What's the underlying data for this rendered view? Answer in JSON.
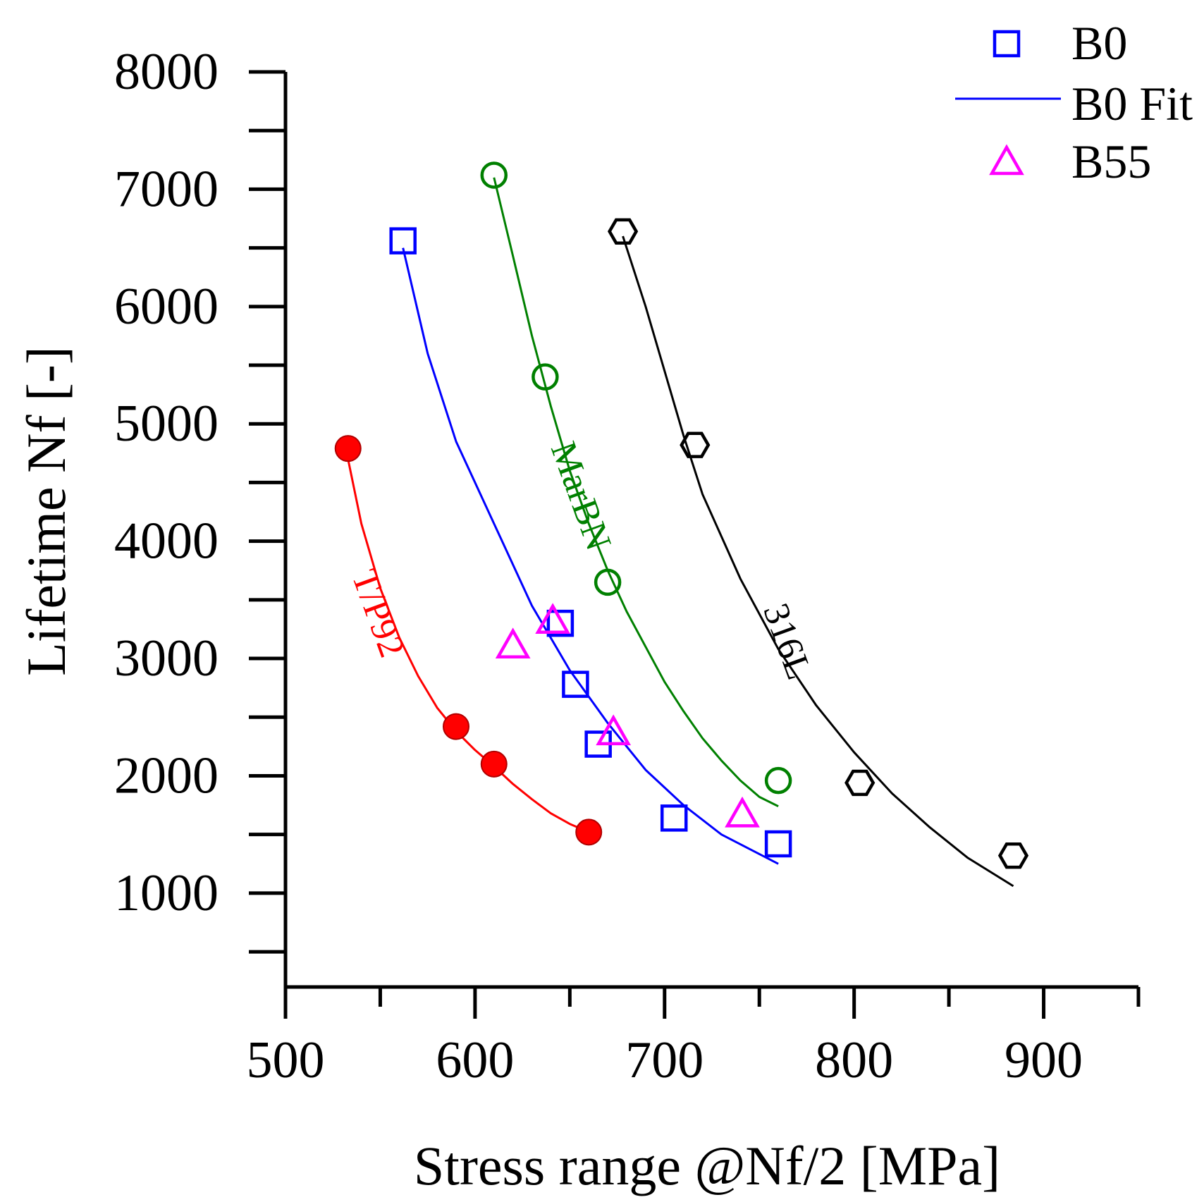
{
  "chart_data": {
    "type": "scatter",
    "title": "",
    "xlabel": "Stress range @Nf/2 [MPa]",
    "ylabel": "Lifetime Nf [-]",
    "xlim": [
      500,
      950
    ],
    "ylim": [
      200,
      8000
    ],
    "xticks": [
      500,
      600,
      700,
      800,
      900
    ],
    "yticks": [
      1000,
      2000,
      3000,
      4000,
      5000,
      6000,
      7000,
      8000
    ],
    "grid": false,
    "legend_position": "top-right",
    "legend": [
      {
        "label": "B0",
        "marker": "square",
        "color": "#0000ff"
      },
      {
        "label": "B0 Fit",
        "marker": "line",
        "color": "#0000ff"
      },
      {
        "label": "B55",
        "marker": "triangle",
        "color": "#ff00ff"
      }
    ],
    "series": [
      {
        "name": "B0",
        "marker": "square",
        "color": "#0000ff",
        "x": [
          562,
          645,
          653,
          665,
          705,
          760
        ],
        "y": [
          6560,
          3300,
          2780,
          2270,
          1640,
          1420
        ]
      },
      {
        "name": "B0 Fit",
        "marker": "line",
        "color": "#0000ff",
        "x": [
          562,
          575,
          590,
          610,
          630,
          650,
          670,
          690,
          710,
          730,
          760
        ],
        "y": [
          6500,
          5600,
          4850,
          4150,
          3450,
          2900,
          2450,
          2050,
          1750,
          1500,
          1250
        ]
      },
      {
        "name": "B55",
        "marker": "triangle",
        "color": "#ff00ff",
        "x": [
          620,
          641,
          673,
          741
        ],
        "y": [
          3110,
          3320,
          2370,
          1670
        ]
      },
      {
        "name": "MarBN",
        "marker": "circle",
        "color": "#008000",
        "x": [
          610,
          637,
          670,
          760
        ],
        "y": [
          7120,
          5400,
          3650,
          1960
        ]
      },
      {
        "name": "MarBN Fit",
        "marker": "line",
        "color": "#008000",
        "x": [
          610,
          620,
          630,
          640,
          650,
          660,
          670,
          680,
          690,
          700,
          710,
          720,
          730,
          740,
          750,
          760
        ],
        "y": [
          7100,
          6430,
          5750,
          5150,
          4600,
          4150,
          3750,
          3400,
          3100,
          2800,
          2550,
          2320,
          2130,
          1960,
          1820,
          1740
        ]
      },
      {
        "name": "316L",
        "marker": "hexagon",
        "color": "#000000",
        "x": [
          678,
          716,
          803,
          884
        ],
        "y": [
          6640,
          4820,
          1940,
          1320
        ]
      },
      {
        "name": "316L Fit",
        "marker": "line",
        "color": "#000000",
        "x": [
          678,
          690,
          700,
          710,
          720,
          740,
          760,
          780,
          800,
          820,
          840,
          860,
          884
        ],
        "y": [
          6600,
          6000,
          5450,
          4900,
          4400,
          3680,
          3080,
          2600,
          2200,
          1850,
          1560,
          1300,
          1060
        ]
      },
      {
        "name": "T/P92",
        "marker": "filled-circle",
        "color": "#ff0000",
        "x": [
          533,
          590,
          610,
          660
        ],
        "y": [
          4790,
          2420,
          2100,
          1520
        ]
      },
      {
        "name": "T/P92 Fit",
        "marker": "line",
        "color": "#ff0000",
        "x": [
          533,
          540,
          550,
          560,
          570,
          580,
          590,
          600,
          610,
          620,
          630,
          640,
          650,
          660
        ],
        "y": [
          4700,
          4150,
          3600,
          3180,
          2850,
          2580,
          2380,
          2220,
          2080,
          1930,
          1800,
          1680,
          1590,
          1520
        ]
      }
    ],
    "annotations": [
      {
        "text": "MarBN",
        "x": 650,
        "y": 4350,
        "color": "#008000",
        "rotation_deg": 70
      },
      {
        "text": "316L",
        "x": 759,
        "y": 3110,
        "color": "#000000",
        "rotation_deg": 70
      },
      {
        "text": "T/P92",
        "x": 543,
        "y": 3350,
        "color": "#ff0000",
        "rotation_deg": 70
      }
    ]
  }
}
